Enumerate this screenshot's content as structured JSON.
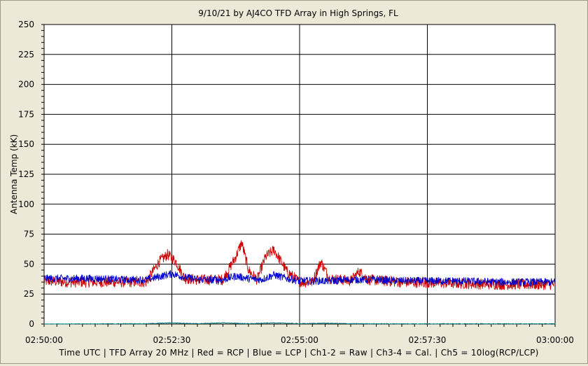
{
  "chart_data": {
    "type": "line",
    "title": "9/10/21  by  AJ4CO TFD Array  in  High Springs, FL",
    "ylabel": "Antenna Temp (kK)",
    "xlabel": "Time UTC | TFD Array 20 MHz | Red = RCP | Blue = LCP | Ch1-2 = Raw | Ch3-4 = Cal. | Ch5 = 10log(RCP/LCP)",
    "xlim": [
      "02:50:00",
      "03:00:00"
    ],
    "ylim": [
      0,
      250
    ],
    "grid": true,
    "x_ticks": [
      "02:50:00",
      "02:52:30",
      "02:55:00",
      "02:57:30",
      "03:00:00"
    ],
    "y_ticks": [
      0,
      25,
      50,
      75,
      100,
      125,
      150,
      175,
      200,
      225,
      250
    ],
    "series": [
      {
        "name": "RCP",
        "color": "#cc0000",
        "x": [
          "02:50:00",
          "02:50:30",
          "02:51:00",
          "02:51:30",
          "02:52:00",
          "02:52:15",
          "02:52:25",
          "02:52:35",
          "02:52:45",
          "02:53:00",
          "02:53:30",
          "02:53:45",
          "02:53:52",
          "02:54:00",
          "02:54:10",
          "02:54:20",
          "02:54:30",
          "02:54:45",
          "02:55:00",
          "02:55:15",
          "02:55:25",
          "02:55:35",
          "02:56:00",
          "02:56:10",
          "02:56:20",
          "02:57:00",
          "02:58:00",
          "02:59:00",
          "03:00:00"
        ],
        "values": [
          36,
          35,
          35,
          35,
          35,
          52,
          58,
          52,
          38,
          37,
          37,
          56,
          68,
          45,
          37,
          56,
          62,
          44,
          35,
          35,
          52,
          38,
          36,
          44,
          37,
          35,
          34,
          33,
          33
        ]
      },
      {
        "name": "LCP",
        "color": "#0000cc",
        "x": [
          "02:50:00",
          "02:50:30",
          "02:51:00",
          "02:51:30",
          "02:52:00",
          "02:52:30",
          "02:52:45",
          "02:53:00",
          "02:53:30",
          "02:53:45",
          "02:54:00",
          "02:54:15",
          "02:54:30",
          "02:54:45",
          "02:55:00",
          "02:55:30",
          "02:56:00",
          "02:56:30",
          "02:57:00",
          "02:58:00",
          "02:59:00",
          "03:00:00"
        ],
        "values": [
          38,
          38,
          38,
          37,
          37,
          42,
          39,
          37,
          37,
          40,
          38,
          37,
          41,
          38,
          36,
          36,
          37,
          37,
          36,
          36,
          35,
          35
        ]
      },
      {
        "name": "Ch5",
        "color": "#008080",
        "x": [
          "02:50:00",
          "02:52:00",
          "02:52:30",
          "02:53:00",
          "02:53:30",
          "02:54:00",
          "02:54:30",
          "02:55:00",
          "02:55:30",
          "02:56:00",
          "02:57:00",
          "02:58:00",
          "03:00:00"
        ],
        "values": [
          0,
          0.3,
          1,
          0.3,
          1,
          0.3,
          1,
          0.3,
          0.7,
          0.3,
          0.2,
          0.2,
          0.2
        ]
      }
    ]
  }
}
